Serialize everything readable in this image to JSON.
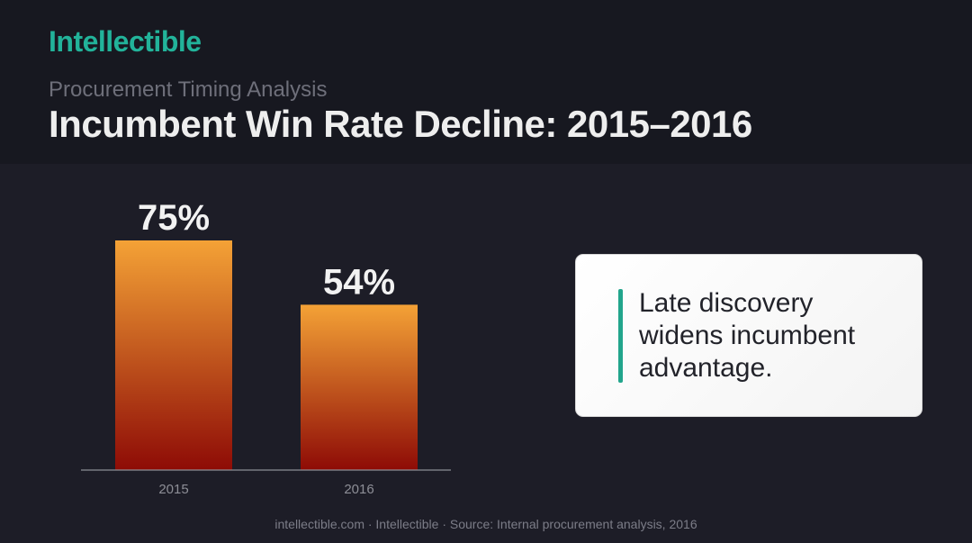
{
  "brand": "Intellectible",
  "subtitle": "Procurement Timing Analysis",
  "title": "Incumbent Win Rate Decline: 2015–2016",
  "callout": {
    "text": "Late discovery widens incumbent advantage.",
    "accent_color": "#22a58c"
  },
  "footer": "intellectible.com · Intellectible · Source: Internal procurement analysis, 2016",
  "chart_data": {
    "type": "bar",
    "categories": [
      "2015",
      "2016"
    ],
    "values": [
      75,
      54
    ],
    "value_labels": [
      "75%",
      "54%"
    ],
    "title": "",
    "xlabel": "",
    "ylabel": "",
    "ylim": [
      0,
      100
    ],
    "grid": false,
    "legend": "none",
    "bar_gradient": [
      "#f4a236",
      "#8e0b06"
    ]
  }
}
